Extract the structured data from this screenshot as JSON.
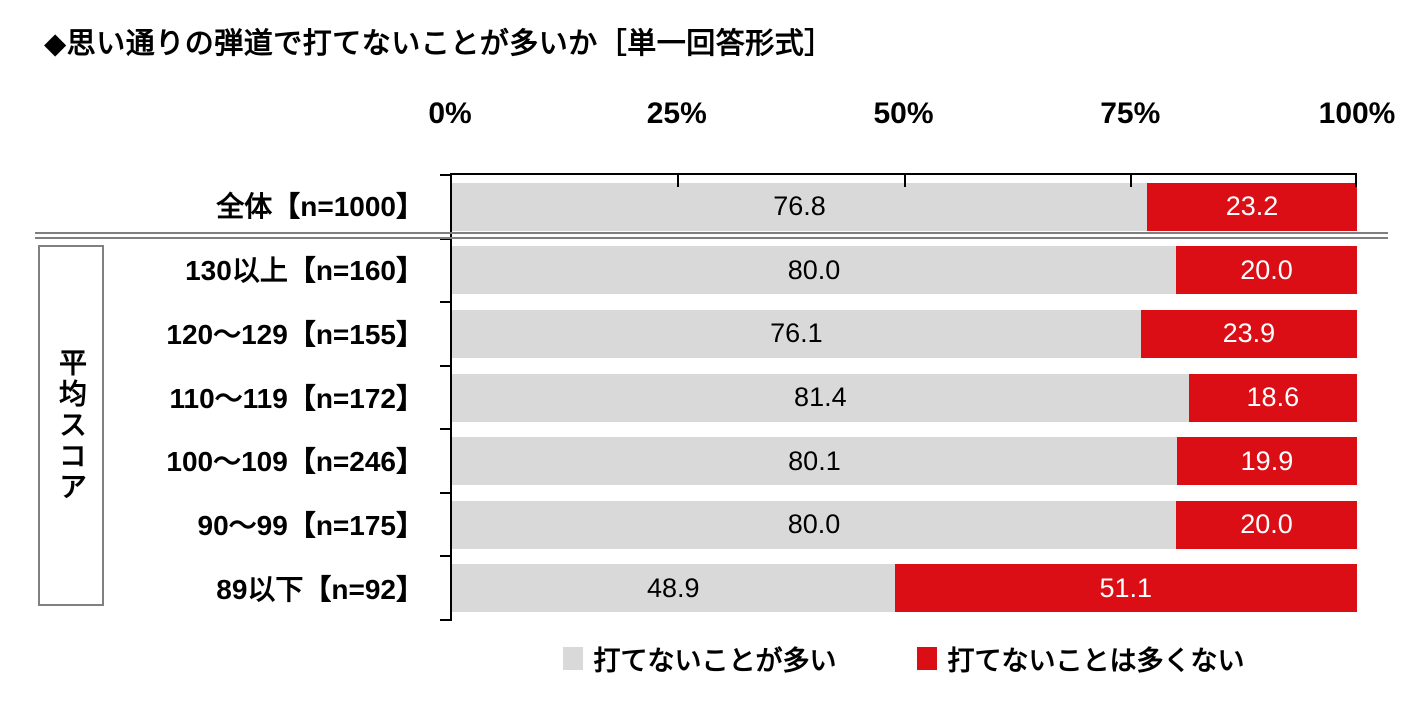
{
  "title": "◆思い通りの弾道で打てないことが多いか［単一回答形式］",
  "colors": {
    "bar_gray": "#d9d9d9",
    "bar_red": "#db0e15",
    "axis": "#000000",
    "separator_gray": "#7f7f7f",
    "group_box_border": "#808080",
    "value_on_gray": "#000000",
    "value_on_red": "#ffffff"
  },
  "group": {
    "label": "平均スコア"
  },
  "chart_data": {
    "type": "bar",
    "orientation": "horizontal",
    "stacked": true,
    "title": "思い通りの弾道で打てないことが多いか（単一回答形式）",
    "x_axis": {
      "ticks": [
        "0%",
        "25%",
        "50%",
        "75%",
        "100%"
      ],
      "tick_values": [
        0,
        25,
        50,
        75,
        100
      ],
      "range": [
        0,
        100
      ],
      "position": "top",
      "grid": false
    },
    "categories": [
      "全体【n=1000】",
      "130以上【n=160】",
      "120〜129【n=155】",
      "110〜119【n=172】",
      "100〜109【n=246】",
      "90〜99【n=175】",
      "89以下【n=92】"
    ],
    "category_group": {
      "label": "平均スコア",
      "row_indices": [
        1,
        2,
        3,
        4,
        5,
        6
      ]
    },
    "series": [
      {
        "name": "打てないことが多い",
        "color": "#d9d9d9",
        "values": [
          76.8,
          80.0,
          76.1,
          81.4,
          80.1,
          80.0,
          48.9
        ]
      },
      {
        "name": "打てないことは多くない",
        "color": "#db0e15",
        "values": [
          23.2,
          20.0,
          23.9,
          18.6,
          19.9,
          20.0,
          51.1
        ]
      }
    ],
    "value_label_format": "0.1f",
    "legend_position": "bottom"
  }
}
